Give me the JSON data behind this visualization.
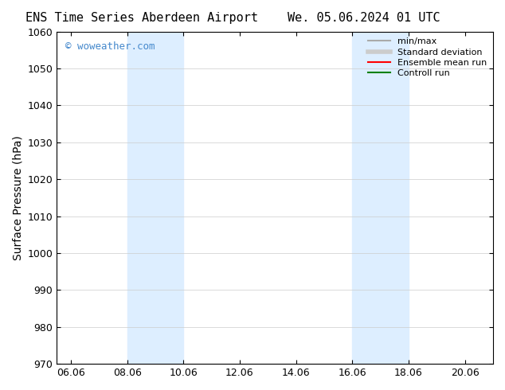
{
  "title": "ENS Time Series Aberdeen Airport",
  "date_label": "We. 05.06.2024 01 UTC",
  "ylabel": "Surface Pressure (hPa)",
  "ylim": [
    970,
    1060
  ],
  "yticks": [
    970,
    980,
    990,
    1000,
    1010,
    1020,
    1030,
    1040,
    1050,
    1060
  ],
  "xtick_labels": [
    "06.06",
    "08.06",
    "10.06",
    "12.06",
    "14.06",
    "16.06",
    "18.06",
    "20.06"
  ],
  "xtick_positions": [
    0,
    2,
    4,
    6,
    8,
    10,
    12,
    14
  ],
  "xlim": [
    -0.5,
    15
  ],
  "shaded_bands": [
    {
      "xmin": 2.0,
      "xmax": 4.0
    },
    {
      "xmin": 10.0,
      "xmax": 12.0
    }
  ],
  "shade_color": "#ddeeff",
  "watermark": "© woweather.com",
  "watermark_color": "#4488cc",
  "legend_items": [
    {
      "label": "min/max",
      "color": "#aaaaaa",
      "lw": 1.5
    },
    {
      "label": "Standard deviation",
      "color": "#cccccc",
      "lw": 4
    },
    {
      "label": "Ensemble mean run",
      "color": "red",
      "lw": 1.5
    },
    {
      "label": "Controll run",
      "color": "green",
      "lw": 1.5
    }
  ],
  "bg_color": "#ffffff",
  "plot_bg_color": "#ffffff",
  "grid_color": "#cccccc",
  "spine_color": "#000000",
  "tick_color": "#000000",
  "label_fontsize": 10,
  "title_fontsize": 11,
  "tick_fontsize": 9,
  "legend_fontsize": 8
}
